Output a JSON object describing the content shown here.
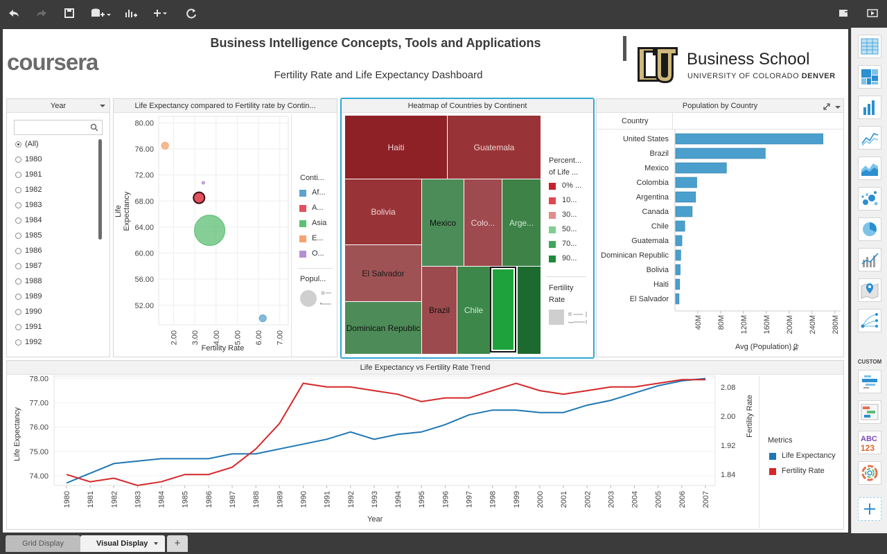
{
  "header": {
    "logo_text": "coursera",
    "course_title": "Business Intelligence Concepts, Tools and Applications",
    "dashboard_title": "Fertility Rate and Life Expectancy Dashboard",
    "school_name": "Business School",
    "school_sub_regular": "UNIVERSITY OF COLORADO ",
    "school_sub_bold": "DENVER"
  },
  "year_filter": {
    "title": "Year",
    "search_placeholder": "",
    "selected": "(All)",
    "options": [
      "(All)",
      "1980",
      "1981",
      "1982",
      "1983",
      "1984",
      "1985",
      "1986",
      "1987",
      "1988",
      "1989",
      "1990",
      "1991",
      "1992"
    ]
  },
  "scatter": {
    "title": "Life Expectancy compared to Fertility rate by Contin...",
    "ylabel": "Life Expectancy",
    "xlabel": "Fertility Rate",
    "yticks": [
      "80.00",
      "76.00",
      "72.00",
      "68.00",
      "64.00",
      "60.00",
      "56.00",
      "52.00"
    ],
    "xticks": [
      "2.00",
      "3.00",
      "4.00",
      "5.00",
      "6.00",
      "7.00"
    ],
    "legend_title": "Conti...",
    "legend": [
      {
        "label": "Af...",
        "color": "#5ba4cf"
      },
      {
        "label": "A...",
        "color": "#e1525e"
      },
      {
        "label": "Asia",
        "color": "#5cbf74"
      },
      {
        "label": "E...",
        "color": "#f5a36e"
      },
      {
        "label": "O...",
        "color": "#b38fd6"
      }
    ],
    "size_legend_title": "Popul..."
  },
  "heatmap": {
    "title": "Heatmap of Countries by Continent",
    "legend_title_1": "Percent...",
    "legend_title_2": "of Life ...",
    "legend": [
      {
        "label": "0% ...",
        "color": "#c8202c"
      },
      {
        "label": "10...",
        "color": "#e0474f"
      },
      {
        "label": "30...",
        "color": "#e48b8b"
      },
      {
        "label": "50...",
        "color": "#7fcf91"
      },
      {
        "label": "70...",
        "color": "#3ea65a"
      },
      {
        "label": "90...",
        "color": "#1e8a3a"
      }
    ],
    "size_legend_1": "Fertility",
    "size_legend_2": "Rate",
    "cells": [
      {
        "label": "Haiti",
        "color": "#8e2126"
      },
      {
        "label": "Guatemala",
        "color": "#983437"
      },
      {
        "label": "Bolivia",
        "color": "#983437"
      },
      {
        "label": "Mexico",
        "color": "#4c8c58"
      },
      {
        "label": "Colo...",
        "color": "#9e4a4e"
      },
      {
        "label": "Arge...",
        "color": "#3e8248"
      },
      {
        "label": "El Salvador",
        "color": "#9f5254"
      },
      {
        "label": "Dominican Republic",
        "color": "#4d8c58"
      },
      {
        "label": "Brazil",
        "color": "#9c4a4d"
      },
      {
        "label": "Chile",
        "color": "#3d874a"
      },
      {
        "label": "",
        "color": "#1ea33c"
      },
      {
        "label": "",
        "color": "#1c6a30"
      }
    ]
  },
  "population": {
    "title": "Population by Country",
    "col_header": "Country",
    "xlabel": "Avg (Population) 2",
    "countries": [
      "United States",
      "Brazil",
      "Mexico",
      "Colombia",
      "Argentina",
      "Canada",
      "Chile",
      "Guatemala",
      "Dominican Republic",
      "Bolivia",
      "Haiti",
      "El Salvador"
    ],
    "values": [
      258,
      157,
      89,
      37,
      35,
      29,
      16,
      11,
      9,
      8,
      7,
      6
    ],
    "ticks": [
      "40M",
      "80M",
      "120M",
      "160M",
      "200M",
      "240M",
      "280M"
    ]
  },
  "trend": {
    "title": "Life Expectancy vs Fertility Rate Trend",
    "ylabel_left": "Life Expectancy",
    "ylabel_right": "Fertility Rate",
    "xlabel": "Year",
    "left_ticks": [
      "78.00",
      "77.00",
      "76.00",
      "75.00",
      "74.00"
    ],
    "right_ticks": [
      "2.08",
      "2.00",
      "1.92",
      "1.84"
    ],
    "years": [
      "1980",
      "1981",
      "1982",
      "1983",
      "1984",
      "1985",
      "1986",
      "1987",
      "1988",
      "1989",
      "1990",
      "1991",
      "1992",
      "1993",
      "1994",
      "1995",
      "1996",
      "1997",
      "1998",
      "1999",
      "2000",
      "2001",
      "2002",
      "2003",
      "2004",
      "2005",
      "2006",
      "2007"
    ],
    "legend_title": "Metrics",
    "legend": [
      {
        "label": "Life Expectancy",
        "color": "#1f77b4"
      },
      {
        "label": "Fertility Rate",
        "color": "#d62728"
      }
    ]
  },
  "chart_data": [
    {
      "type": "scatter",
      "title": "Life Expectancy compared to Fertility rate by Contin...",
      "xlabel": "Fertility Rate",
      "ylabel": "Life Expectancy",
      "xlim": [
        1.3,
        7.4
      ],
      "ylim": [
        49,
        81
      ],
      "points": [
        {
          "series": "E...",
          "x": 1.6,
          "y": 76.5,
          "size": "small",
          "color": "#f5a36e"
        },
        {
          "series": "O...",
          "x": 3.4,
          "y": 70.8,
          "size": "tiny",
          "color": "#b38fd6"
        },
        {
          "series": "A...",
          "x": 3.2,
          "y": 68.5,
          "size": "medium",
          "color": "#e1525e"
        },
        {
          "series": "Asia",
          "x": 3.7,
          "y": 63.5,
          "size": "large",
          "color": "#5cbf74"
        },
        {
          "series": "Af...",
          "x": 6.2,
          "y": 50.0,
          "size": "small",
          "color": "#5ba4cf"
        }
      ]
    },
    {
      "type": "bar",
      "title": "Population by Country",
      "xlabel": "Avg (Population) 2",
      "categories": [
        "United States",
        "Brazil",
        "Mexico",
        "Colombia",
        "Argentina",
        "Canada",
        "Chile",
        "Guatemala",
        "Dominican Republic",
        "Bolivia",
        "Haiti",
        "El Salvador"
      ],
      "values": [
        258,
        157,
        89,
        37,
        35,
        29,
        16,
        11,
        9,
        8,
        7,
        6
      ],
      "unit": "M",
      "xlim": [
        0,
        290
      ]
    },
    {
      "type": "line",
      "title": "Life Expectancy vs Fertility Rate Trend",
      "xlabel": "Year",
      "ylabel": "Life Expectancy",
      "y2label": "Fertility Rate",
      "x": [
        "1980",
        "1981",
        "1982",
        "1983",
        "1984",
        "1985",
        "1986",
        "1987",
        "1988",
        "1989",
        "1990",
        "1991",
        "1992",
        "1993",
        "1994",
        "1995",
        "1996",
        "1997",
        "1998",
        "1999",
        "2000",
        "2001",
        "2002",
        "2003",
        "2004",
        "2005",
        "2006",
        "2007"
      ],
      "series": [
        {
          "name": "Life Expectancy",
          "axis": "left",
          "color": "#1f77b4",
          "values": [
            73.7,
            74.1,
            74.5,
            74.6,
            74.7,
            74.7,
            74.7,
            74.9,
            74.9,
            75.1,
            75.3,
            75.5,
            75.8,
            75.5,
            75.7,
            75.8,
            76.1,
            76.5,
            76.7,
            76.7,
            76.6,
            76.6,
            76.9,
            77.1,
            77.4,
            77.7,
            77.9,
            78.0
          ]
        },
        {
          "name": "Fertility Rate",
          "axis": "right",
          "color": "#d62728",
          "values": [
            1.84,
            1.82,
            1.83,
            1.81,
            1.82,
            1.84,
            1.84,
            1.86,
            1.91,
            1.98,
            2.09,
            2.08,
            2.08,
            2.07,
            2.06,
            2.04,
            2.05,
            2.05,
            2.07,
            2.09,
            2.07,
            2.06,
            2.07,
            2.08,
            2.08,
            2.09,
            2.1,
            2.1
          ]
        }
      ],
      "ylim": [
        73.6,
        78.1
      ],
      "y2lim": [
        1.81,
        2.11
      ]
    }
  ]
}
